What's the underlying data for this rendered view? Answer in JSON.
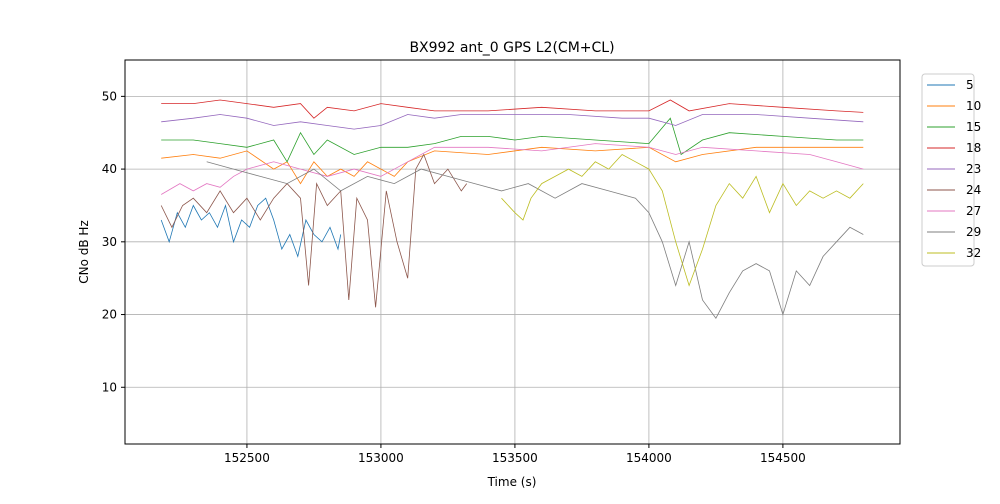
{
  "chart_data": {
    "type": "line",
    "title": "BX992 ant_0 GPS L2(CM+CL)",
    "xlabel": "Time (s)",
    "ylabel": "CNo dB Hz",
    "xlim": [
      152045,
      154937
    ],
    "ylim": [
      2.2,
      55
    ],
    "xticks": [
      152500,
      153000,
      153500,
      154000,
      154500
    ],
    "yticks": [
      10,
      20,
      30,
      40,
      50
    ],
    "grid": true,
    "legend_position": "outside-right",
    "series": [
      {
        "name": "5",
        "color": "#1f77b4",
        "x": [
          152180,
          152210,
          152240,
          152270,
          152300,
          152330,
          152360,
          152390,
          152420,
          152450,
          152480,
          152510,
          152540,
          152570,
          152600,
          152630,
          152660,
          152690,
          152720,
          152750,
          152780,
          152810,
          152840,
          152850
        ],
        "y": [
          33,
          30,
          34,
          32,
          35,
          33,
          34,
          32,
          35,
          30,
          33,
          32,
          35,
          36,
          33,
          29,
          31,
          28,
          33,
          31,
          30,
          32,
          29,
          31
        ]
      },
      {
        "name": "10",
        "color": "#ff7f0e",
        "x": [
          152180,
          152300,
          152400,
          152500,
          152600,
          152650,
          152700,
          152750,
          152800,
          152850,
          152900,
          152950,
          153000,
          153050,
          153100,
          153200,
          153400,
          153600,
          153800,
          154000,
          154100,
          154200,
          154400,
          154600,
          154800
        ],
        "y": [
          41.5,
          42,
          41.5,
          42.5,
          40,
          41,
          38,
          41,
          39,
          40,
          39,
          41,
          40,
          39,
          41,
          42.5,
          42,
          43,
          42.5,
          43,
          41,
          42,
          43,
          43,
          43
        ]
      },
      {
        "name": "15",
        "color": "#2ca02c",
        "x": [
          152180,
          152300,
          152400,
          152500,
          152600,
          152650,
          152700,
          152750,
          152800,
          152900,
          153000,
          153100,
          153200,
          153300,
          153400,
          153500,
          153600,
          153800,
          154000,
          154080,
          154120,
          154200,
          154300,
          154500,
          154700,
          154800
        ],
        "y": [
          44,
          44,
          43.5,
          43,
          44,
          41,
          45,
          42,
          44,
          42,
          43,
          43,
          43.5,
          44.5,
          44.5,
          44,
          44.5,
          44,
          43.5,
          47,
          42,
          44,
          45,
          44.5,
          44,
          44
        ]
      },
      {
        "name": "18",
        "color": "#d62728",
        "x": [
          152180,
          152300,
          152400,
          152500,
          152600,
          152700,
          152750,
          152800,
          152900,
          153000,
          153100,
          153200,
          153400,
          153600,
          153800,
          154000,
          154080,
          154150,
          154300,
          154500,
          154700,
          154800
        ],
        "y": [
          49,
          49,
          49.5,
          49,
          48.5,
          49,
          47,
          48.5,
          48,
          49,
          48.5,
          48,
          48,
          48.5,
          48,
          48,
          49.5,
          48,
          49,
          48.5,
          48,
          47.8
        ]
      },
      {
        "name": "23",
        "color": "#9467bd",
        "x": [
          152180,
          152300,
          152400,
          152500,
          152600,
          152700,
          152800,
          152900,
          153000,
          153100,
          153200,
          153300,
          153500,
          153700,
          153900,
          154000,
          154100,
          154200,
          154400,
          154600,
          154800
        ],
        "y": [
          46.5,
          47,
          47.5,
          47,
          46,
          46.5,
          46,
          45.5,
          46,
          47.5,
          47,
          47.5,
          47.5,
          47.5,
          47,
          47,
          46,
          47.5,
          47.5,
          47,
          46.5
        ]
      },
      {
        "name": "24",
        "color": "#8c564b",
        "x": [
          152180,
          152220,
          152260,
          152300,
          152350,
          152400,
          152450,
          152500,
          152550,
          152600,
          152650,
          152700,
          152730,
          152760,
          152800,
          152850,
          152880,
          152910,
          152950,
          152980,
          153020,
          153060,
          153100,
          153130,
          153160,
          153200,
          153250,
          153300,
          153320
        ],
        "y": [
          35,
          32,
          35,
          36,
          34,
          37,
          34,
          36,
          33,
          36,
          38,
          36,
          24,
          38,
          35,
          37,
          22,
          36,
          33,
          21,
          37,
          30,
          25,
          40,
          42,
          38,
          40,
          37,
          38
        ]
      },
      {
        "name": "27",
        "color": "#e377c2",
        "x": [
          152180,
          152250,
          152300,
          152350,
          152400,
          152450,
          152500,
          152600,
          152700,
          152800,
          152900,
          153000,
          153100,
          153200,
          153400,
          153600,
          153800,
          154000,
          154100,
          154200,
          154400,
          154600,
          154700,
          154800
        ],
        "y": [
          36.5,
          38,
          37,
          38,
          37.5,
          39,
          40,
          41,
          40,
          39,
          40,
          39,
          41,
          43,
          43,
          42.5,
          43.5,
          43,
          42,
          43,
          42.5,
          42,
          41,
          40
        ]
      },
      {
        "name": "29",
        "color": "#7f7f7f",
        "x": [
          152350,
          152450,
          152550,
          152650,
          152750,
          152850,
          152950,
          153050,
          153150,
          153250,
          153350,
          153450,
          153550,
          153650,
          153750,
          153850,
          153950,
          154000,
          154050,
          154100,
          154150,
          154200,
          154250,
          154300,
          154350,
          154400,
          154450,
          154500,
          154550,
          154600,
          154650,
          154700,
          154750,
          154800
        ],
        "y": [
          41,
          40,
          39,
          38,
          40,
          37,
          39,
          38,
          40,
          39,
          38,
          37,
          38,
          36,
          38,
          37,
          36,
          34,
          30,
          24,
          30,
          22,
          19.5,
          23,
          26,
          27,
          26,
          20,
          26,
          24,
          28,
          30,
          32,
          31
        ]
      },
      {
        "name": "32",
        "color": "#bcbd22",
        "x": [
          153450,
          153500,
          153530,
          153560,
          153600,
          153650,
          153700,
          153750,
          153800,
          153850,
          153900,
          153950,
          154000,
          154050,
          154100,
          154150,
          154200,
          154250,
          154300,
          154350,
          154400,
          154450,
          154500,
          154550,
          154600,
          154650,
          154700,
          154750,
          154800
        ],
        "y": [
          36,
          34,
          33,
          36,
          38,
          39,
          40,
          39,
          41,
          40,
          42,
          41,
          40,
          37,
          30,
          24,
          29,
          35,
          38,
          36,
          39,
          34,
          38,
          35,
          37,
          36,
          37,
          36,
          38
        ]
      }
    ]
  }
}
